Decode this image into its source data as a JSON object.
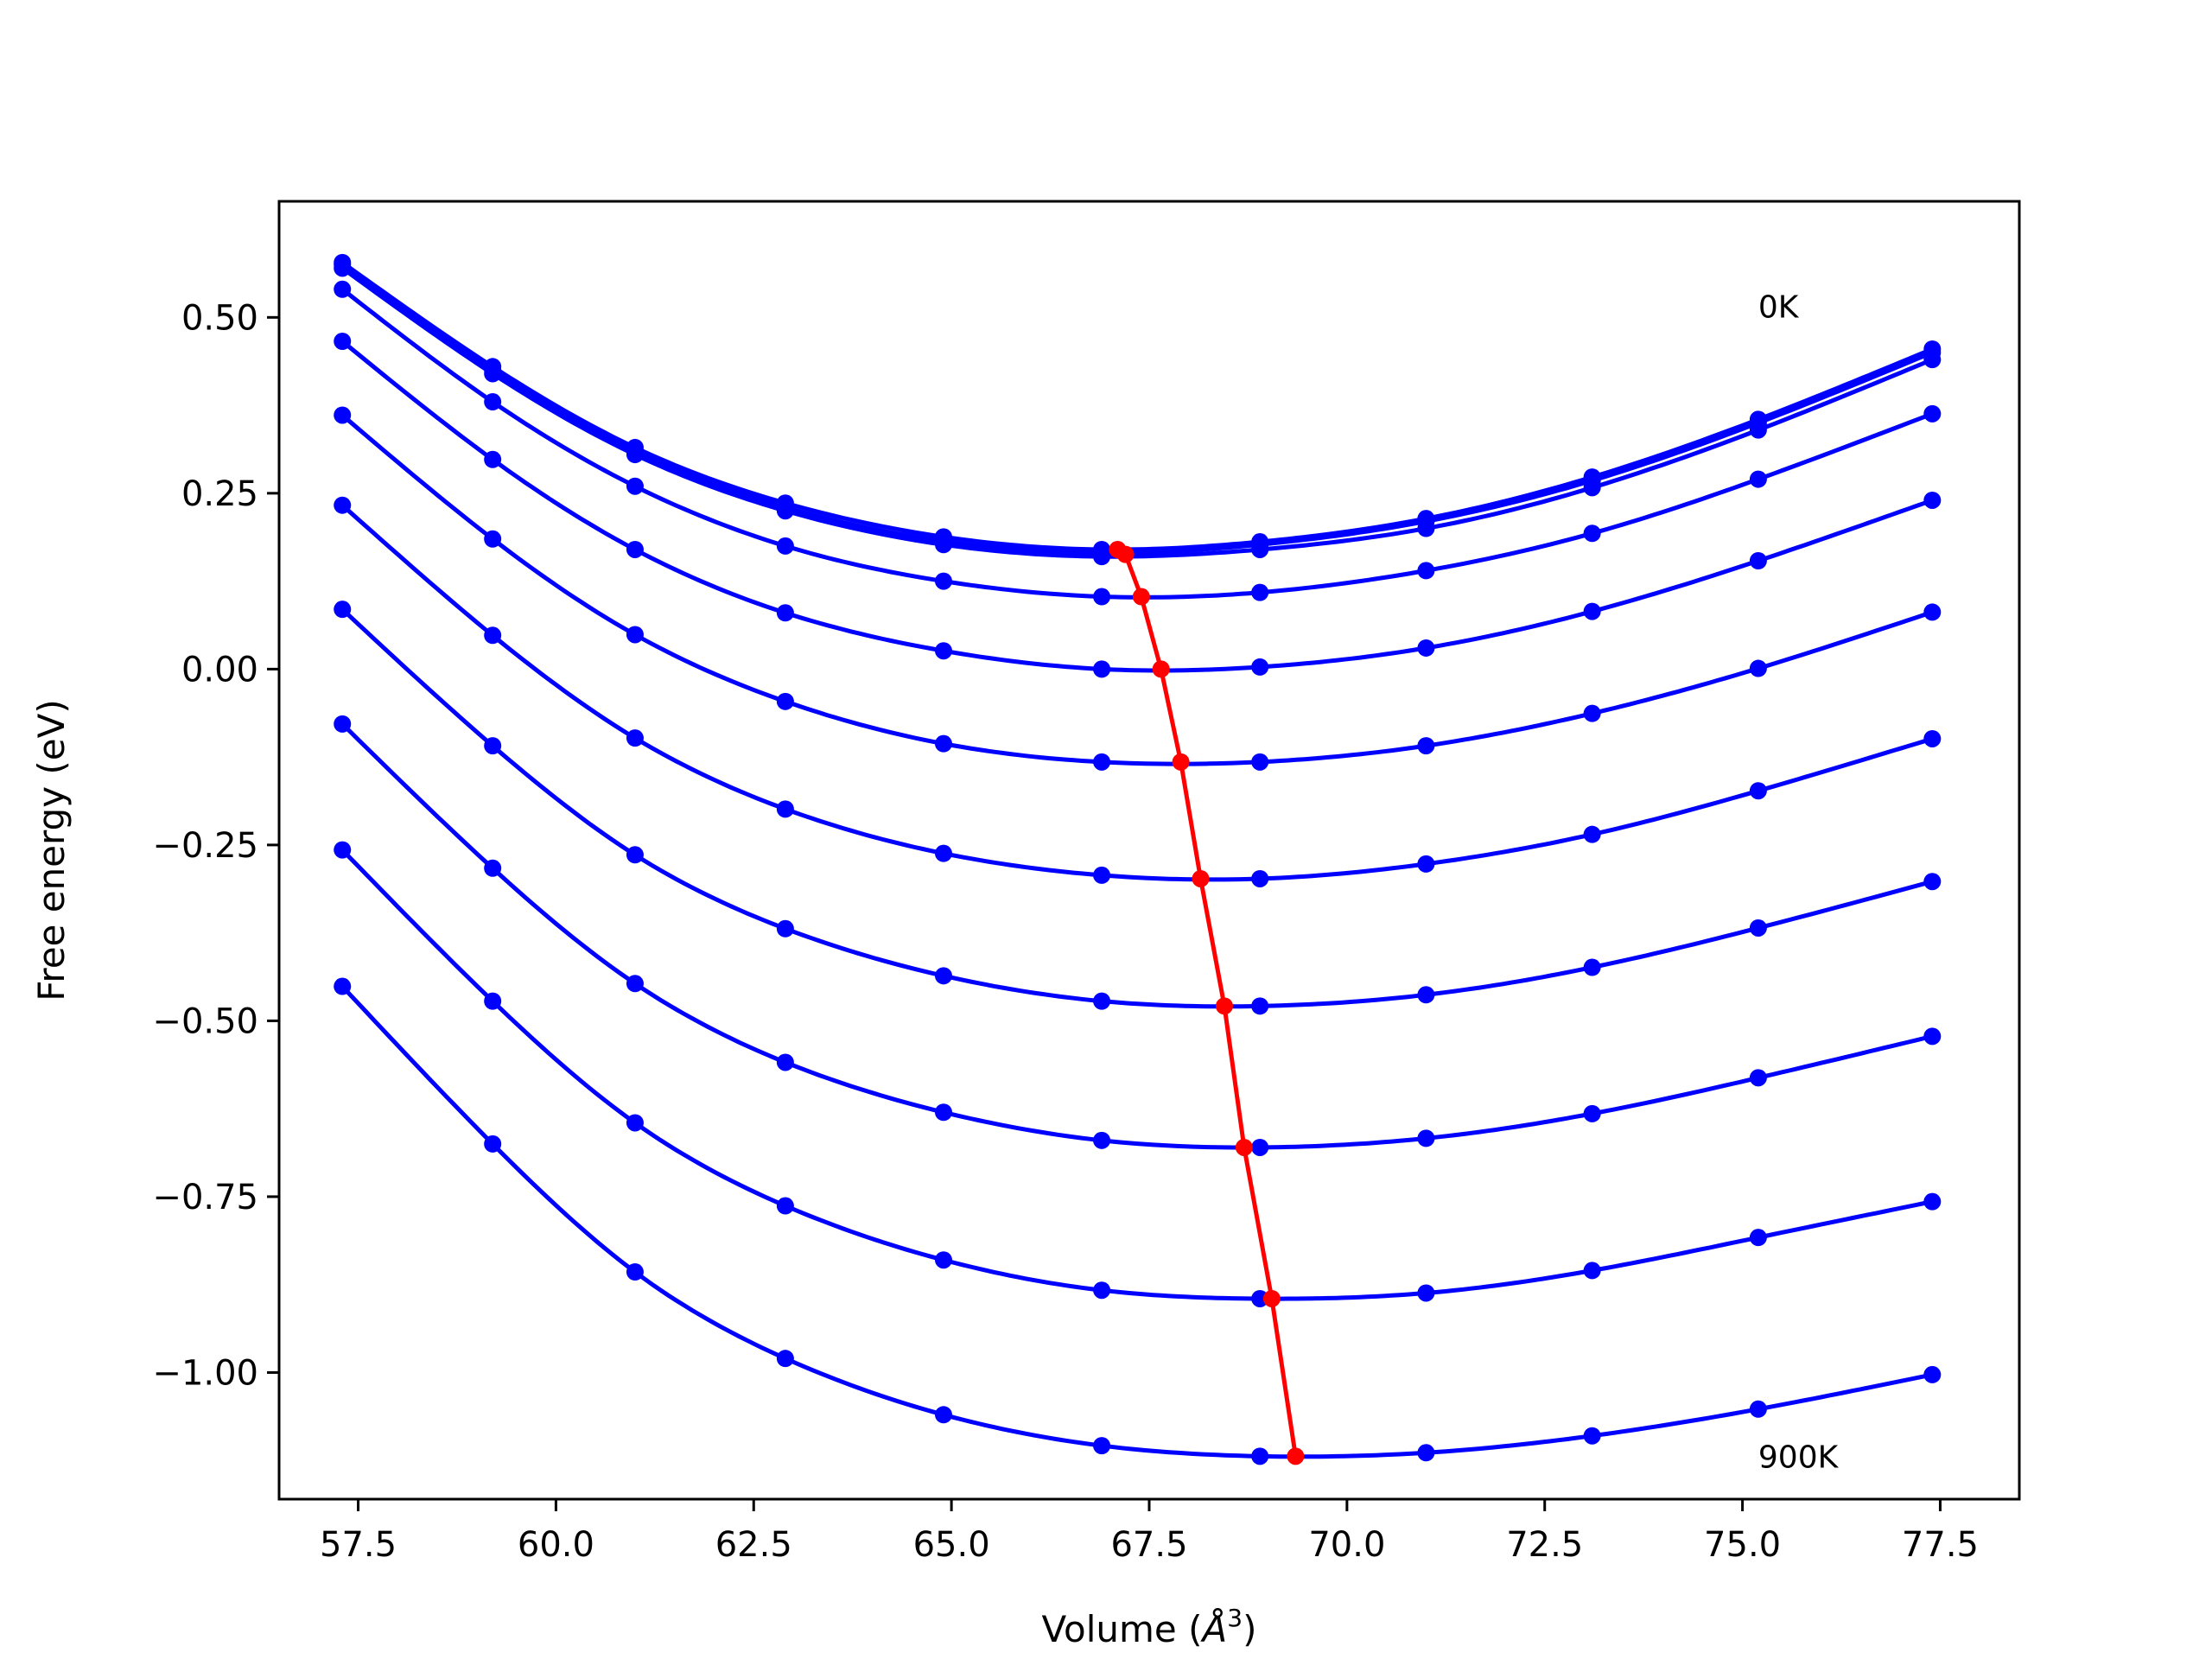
{
  "chart_data": {
    "type": "line",
    "xlabel": "Volume (Å³)",
    "xlabel_text": "Volume (",
    "xlabel_unit": "Å",
    "xlabel_exp": "3",
    "xlabel_close": ")",
    "ylabel": "Free energy (eV)",
    "xlim": [
      56.5,
      78.5
    ],
    "ylim": [
      -1.18,
      0.665
    ],
    "xticks": [
      57.5,
      60.0,
      62.5,
      65.0,
      67.5,
      70.0,
      72.5,
      75.0,
      77.5
    ],
    "xtick_labels": [
      "57.5",
      "60.0",
      "62.5",
      "65.0",
      "67.5",
      "70.0",
      "72.5",
      "75.0",
      "77.5"
    ],
    "yticks": [
      0.5,
      0.25,
      0.0,
      -0.25,
      -0.5,
      -0.75,
      -1.0
    ],
    "ytick_labels": [
      "0.50",
      "0.25",
      "0.00",
      "−0.25",
      "−0.50",
      "−0.75",
      "−1.00"
    ],
    "annotations": [
      {
        "text": "0K",
        "x": 75.2,
        "y": 0.5
      },
      {
        "text": "900K",
        "x": 75.2,
        "y": -1.135
      }
    ],
    "x": [
      57.3,
      59.2,
      61.0,
      62.9,
      64.9,
      66.9,
      68.9,
      71.0,
      73.1,
      75.2,
      77.4
    ],
    "series": [
      {
        "color": "#0000ff",
        "values": [
          0.578,
          0.43,
          0.315,
          0.236,
          0.188,
          0.17,
          0.181,
          0.214,
          0.273,
          0.355,
          0.455
        ]
      },
      {
        "color": "#0000ff",
        "values": [
          0.575,
          0.425,
          0.31,
          0.23,
          0.182,
          0.165,
          0.177,
          0.21,
          0.268,
          0.35,
          0.45
        ]
      },
      {
        "color": "#0000ff",
        "values": [
          0.57,
          0.42,
          0.305,
          0.225,
          0.177,
          0.16,
          0.17,
          0.2,
          0.258,
          0.34,
          0.44
        ]
      },
      {
        "color": "#0000ff",
        "values": [
          0.54,
          0.38,
          0.26,
          0.175,
          0.125,
          0.103,
          0.109,
          0.14,
          0.193,
          0.27,
          0.363
        ]
      },
      {
        "color": "#0000ff",
        "values": [
          0.466,
          0.298,
          0.17,
          0.08,
          0.026,
          0.0,
          0.003,
          0.03,
          0.082,
          0.154,
          0.24
        ]
      },
      {
        "color": "#0000ff",
        "values": [
          0.361,
          0.185,
          0.049,
          -0.046,
          -0.106,
          -0.132,
          -0.132,
          -0.109,
          -0.063,
          0.001,
          0.081
        ]
      },
      {
        "color": "#0000ff",
        "values": [
          0.233,
          0.048,
          -0.098,
          -0.199,
          -0.262,
          -0.293,
          -0.298,
          -0.277,
          -0.235,
          -0.173,
          -0.099
        ]
      },
      {
        "color": "#0000ff",
        "values": [
          0.085,
          -0.109,
          -0.264,
          -0.369,
          -0.436,
          -0.472,
          -0.479,
          -0.463,
          -0.424,
          -0.368,
          -0.302
        ]
      },
      {
        "color": "#0000ff",
        "values": [
          -0.078,
          -0.283,
          -0.447,
          -0.559,
          -0.63,
          -0.67,
          -0.68,
          -0.667,
          -0.632,
          -0.581,
          -0.522
        ]
      },
      {
        "color": "#0000ff",
        "values": [
          -0.257,
          -0.472,
          -0.645,
          -0.763,
          -0.84,
          -0.883,
          -0.895,
          -0.887,
          -0.855,
          -0.808,
          -0.757
        ]
      },
      {
        "color": "#0000ff",
        "values": [
          -0.451,
          -0.675,
          -0.857,
          -0.98,
          -1.06,
          -1.104,
          -1.119,
          -1.114,
          -1.09,
          -1.052,
          -1.003
        ]
      }
    ],
    "minima_line": {
      "color": "#ff0000",
      "x": [
        67.1,
        67.2,
        67.4,
        67.65,
        67.9,
        68.15,
        68.45,
        68.7,
        69.05,
        69.35
      ],
      "y": [
        0.17,
        0.163,
        0.103,
        0.0,
        -0.132,
        -0.298,
        -0.479,
        -0.68,
        -0.895,
        -1.119
      ]
    }
  }
}
